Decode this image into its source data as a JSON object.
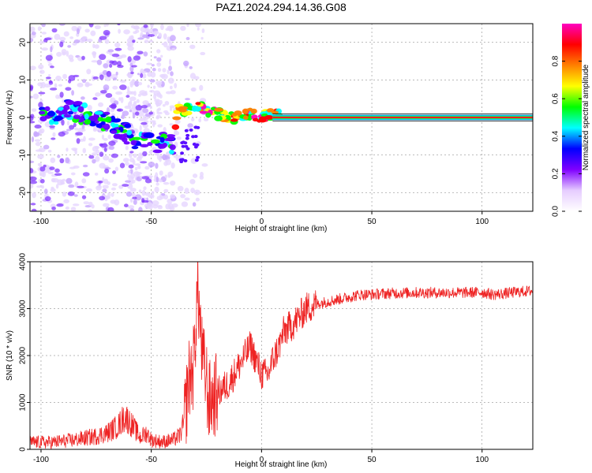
{
  "title": "PAZ1.2024.294.14.36.G08",
  "chart_data": [
    {
      "type": "heatmap",
      "title": "PAZ1.2024.294.14.36.G08",
      "xlabel": "Height of straight line (km)",
      "ylabel": "Frequency (Hz)",
      "xlim": [
        -105,
        123
      ],
      "ylim": [
        -25,
        25
      ],
      "x_ticks": [
        -100,
        -50,
        0,
        50,
        100
      ],
      "y_ticks": [
        -20,
        -10,
        0,
        10,
        20
      ],
      "colorbar": {
        "label": "Normalized spectral amplitude",
        "range": [
          0,
          1
        ],
        "ticks": [
          0.0,
          0.2,
          0.4,
          0.6,
          0.8
        ],
        "colormap": [
          "#ffffff",
          "#e6ccff",
          "#8000ff",
          "#0000ff",
          "#00ffff",
          "#00ff00",
          "#ffff00",
          "#ff8000",
          "#ff0000",
          "#ff00c0"
        ]
      },
      "signal_track": [
        {
          "x": -102,
          "y": 1
        },
        {
          "x": -95,
          "y": 0
        },
        {
          "x": -88,
          "y": 2
        },
        {
          "x": -80,
          "y": 1
        },
        {
          "x": -74,
          "y": 0
        },
        {
          "x": -68,
          "y": -2
        },
        {
          "x": -62,
          "y": -4
        },
        {
          "x": -56,
          "y": -6
        },
        {
          "x": -50,
          "y": -7
        },
        {
          "x": -44,
          "y": -6
        },
        {
          "x": -40,
          "y": -8
        },
        {
          "x": -38,
          "y": 2
        },
        {
          "x": -34,
          "y": 2
        },
        {
          "x": -30,
          "y": 3
        },
        {
          "x": -25,
          "y": 2
        },
        {
          "x": -20,
          "y": 1
        },
        {
          "x": -15,
          "y": 0
        },
        {
          "x": -10,
          "y": 0
        },
        {
          "x": -5,
          "y": 1
        },
        {
          "x": 0,
          "y": 0
        },
        {
          "x": 5,
          "y": 1
        },
        {
          "x": 10,
          "y": 0
        },
        {
          "x": 50,
          "y": 0
        },
        {
          "x": 100,
          "y": 0
        },
        {
          "x": 123,
          "y": 0
        }
      ],
      "grid": true
    },
    {
      "type": "line",
      "xlabel": "Height of straight line (km)",
      "ylabel": "SNR (10 * v/v)",
      "xlim": [
        -105,
        123
      ],
      "ylim": [
        0,
        4000
      ],
      "x_ticks": [
        -100,
        -50,
        0,
        50,
        100
      ],
      "y_ticks": [
        0,
        1000,
        2000,
        3000,
        4000
      ],
      "series_color": "#ee2222",
      "x": [
        -105,
        -95,
        -85,
        -75,
        -70,
        -65,
        -62,
        -60,
        -57,
        -55,
        -52,
        -50,
        -45,
        -40,
        -37,
        -35,
        -33,
        -31,
        -30,
        -29,
        -28,
        -27,
        -26,
        -25,
        -24,
        -22,
        -20,
        -15,
        -10,
        -5,
        0,
        3,
        5,
        8,
        10,
        15,
        20,
        25,
        30,
        35,
        40,
        45,
        50,
        55,
        60,
        70,
        80,
        90,
        100,
        105,
        110,
        115,
        120,
        123
      ],
      "y": [
        150,
        150,
        200,
        280,
        350,
        500,
        700,
        600,
        400,
        250,
        350,
        200,
        160,
        200,
        300,
        600,
        1500,
        1700,
        2500,
        3500,
        2800,
        2000,
        1700,
        1500,
        1000,
        1100,
        1200,
        1400,
        1800,
        2200,
        1600,
        1600,
        1900,
        2200,
        2500,
        2700,
        3000,
        3100,
        3150,
        3200,
        3250,
        3300,
        3300,
        3320,
        3330,
        3340,
        3340,
        3340,
        3350,
        3300,
        3320,
        3350,
        3370,
        3380
      ]
    }
  ]
}
